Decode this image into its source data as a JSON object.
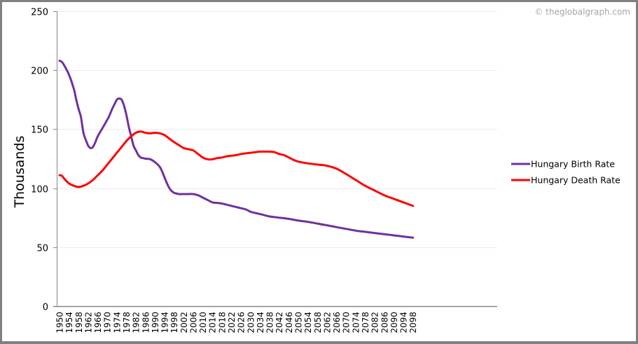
{
  "chart_data": {
    "type": "line",
    "title": "",
    "xlabel": "",
    "ylabel": "Thousands",
    "ylim": [
      0,
      250
    ],
    "yticks": [
      0,
      50,
      100,
      150,
      200,
      250
    ],
    "grid": true,
    "legend_position": "right",
    "copyright": "© theglobalgraph.com",
    "x_tick_labels": [
      "1950",
      "1954",
      "1958",
      "1962",
      "1966",
      "1970",
      "1974",
      "1978",
      "1982",
      "1986",
      "1990",
      "1994",
      "1998",
      "2002",
      "2006",
      "2010",
      "2014",
      "2018",
      "2022",
      "2026",
      "2030",
      "2034",
      "2038",
      "2042",
      "2046",
      "2050",
      "2054",
      "2058",
      "2062",
      "2066",
      "2070",
      "2074",
      "2078",
      "2082",
      "2086",
      "2090",
      "2094",
      "2098"
    ],
    "x_range": [
      1950,
      2133
    ],
    "series": [
      {
        "name": "Hungary Birth Rate",
        "color": "#7030a0",
        "x": [
          1950,
          1951,
          1952,
          1954,
          1956,
          1957,
          1958,
          1959,
          1960,
          1961,
          1962,
          1963,
          1964,
          1965,
          1966,
          1968,
          1970,
          1971,
          1972,
          1973,
          1974,
          1975,
          1976,
          1977,
          1978,
          1979,
          1980,
          1981,
          1982,
          1983,
          1984,
          1985,
          1986,
          1988,
          1990,
          1992,
          1993,
          1994,
          1995,
          1996,
          1997,
          1998,
          1999,
          2000,
          2002,
          2004,
          2006,
          2008,
          2010,
          2012,
          2014,
          2016,
          2018,
          2020,
          2022,
          2024,
          2026,
          2028,
          2030,
          2032,
          2034,
          2036,
          2038,
          2040,
          2042,
          2046,
          2050,
          2054,
          2058,
          2062,
          2066,
          2070,
          2074,
          2078,
          2082,
          2086,
          2090,
          2094,
          2098
        ],
        "values": [
          208,
          207,
          204,
          196,
          184,
          175,
          167,
          160,
          147,
          141,
          136,
          134,
          135,
          139,
          144,
          151,
          158,
          162,
          167,
          171,
          175,
          176,
          175,
          170,
          162,
          152,
          144,
          136,
          132,
          128,
          126,
          125.5,
          125,
          124.5,
          122,
          118,
          114,
          109,
          104,
          100,
          97.5,
          96,
          95.5,
          95,
          95,
          95,
          95,
          94,
          92,
          90,
          88,
          87.5,
          87,
          86,
          85,
          84,
          83,
          82,
          80,
          79,
          78,
          77,
          76,
          75.5,
          75,
          74,
          72.5,
          71.5,
          70,
          68.5,
          67,
          65.5,
          64,
          63,
          62,
          61,
          60,
          59,
          58
        ]
      },
      {
        "name": "Hungary Death Rate",
        "color": "#ff0000",
        "x": [
          1950,
          1951,
          1952,
          1954,
          1956,
          1958,
          1960,
          1962,
          1964,
          1966,
          1968,
          1970,
          1972,
          1974,
          1976,
          1978,
          1980,
          1982,
          1984,
          1986,
          1988,
          1990,
          1992,
          1994,
          1996,
          1998,
          2000,
          2002,
          2004,
          2006,
          2008,
          2010,
          2012,
          2014,
          2016,
          2018,
          2020,
          2022,
          2024,
          2026,
          2028,
          2030,
          2032,
          2034,
          2036,
          2038,
          2040,
          2042,
          2044,
          2046,
          2048,
          2050,
          2054,
          2058,
          2062,
          2066,
          2070,
          2074,
          2078,
          2082,
          2086,
          2090,
          2094,
          2098
        ],
        "values": [
          111,
          110.5,
          108,
          104,
          102,
          101,
          102,
          104,
          107,
          111,
          115,
          120,
          125,
          130,
          135,
          140,
          144,
          147,
          148,
          147,
          146.5,
          147,
          146.5,
          145,
          142,
          139,
          136.5,
          134,
          133,
          132,
          129,
          126,
          124.5,
          124.5,
          125.5,
          126,
          127,
          127.5,
          128,
          129,
          129.5,
          130,
          130.5,
          131,
          131,
          131,
          130.5,
          129,
          128,
          126,
          124,
          122.5,
          121,
          120,
          119,
          116.5,
          112,
          107,
          102,
          98,
          94,
          91,
          88,
          85
        ]
      }
    ]
  }
}
